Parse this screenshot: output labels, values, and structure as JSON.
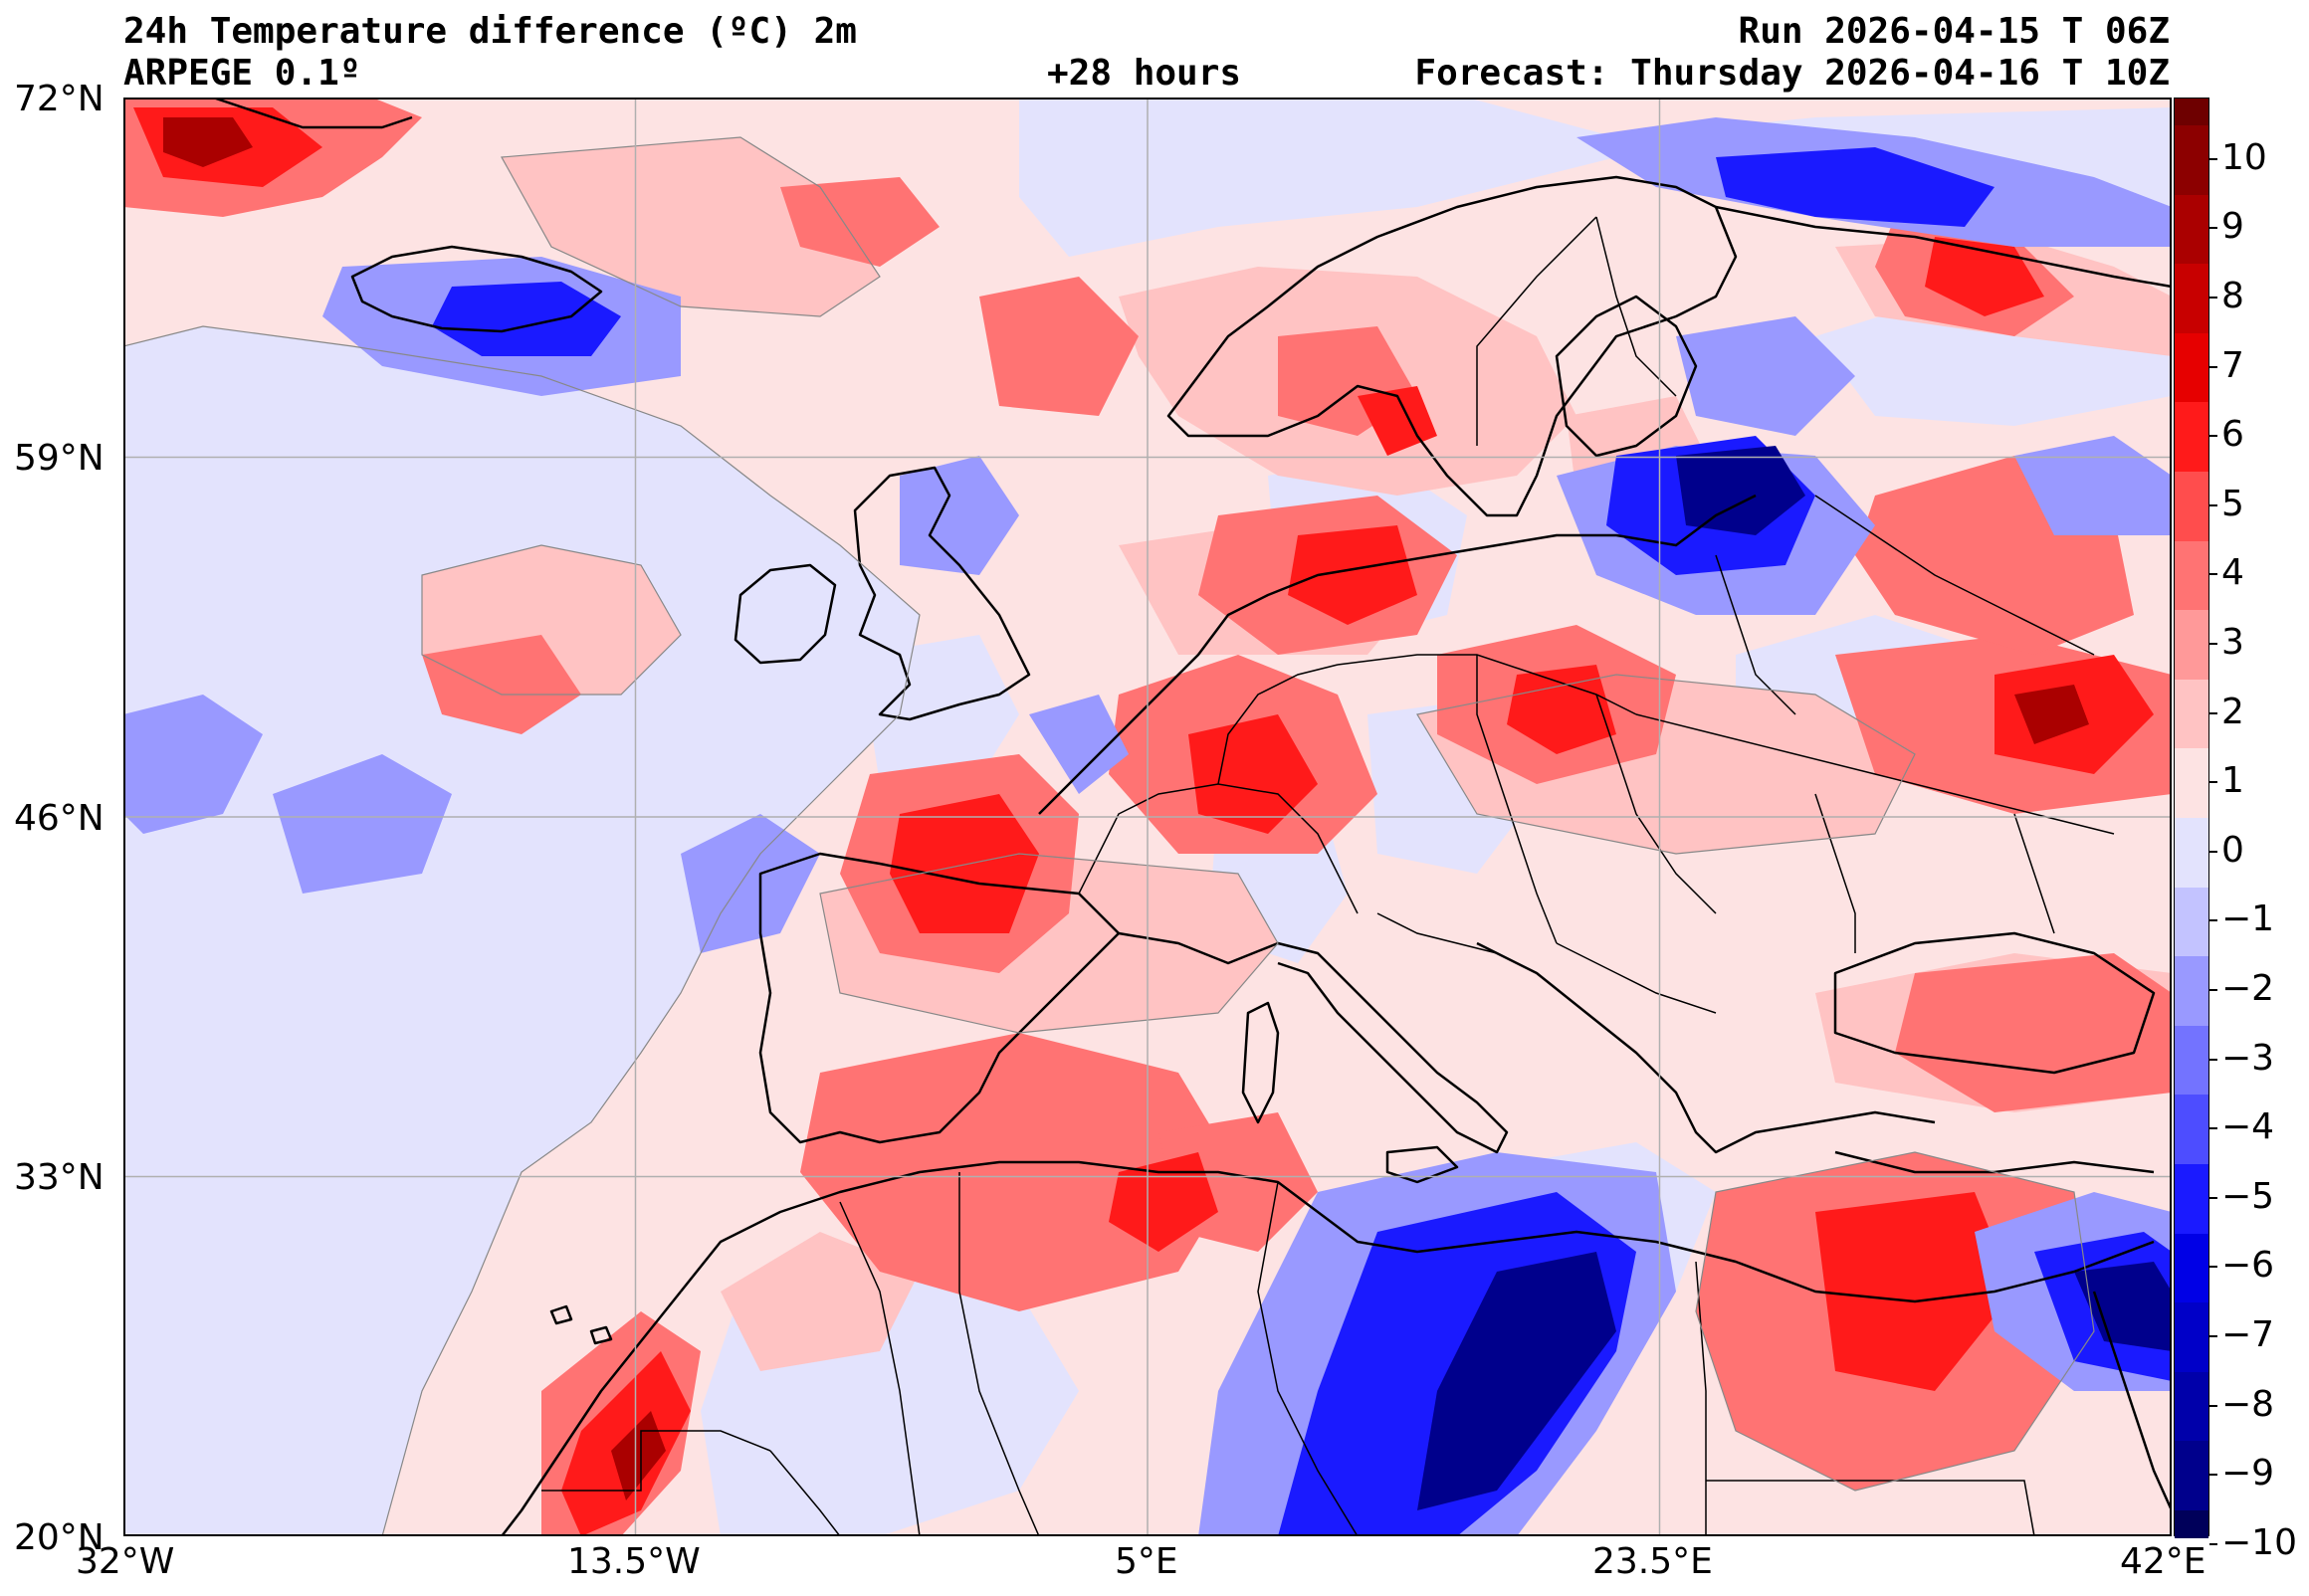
{
  "header": {
    "title_line1": "24h Temperature difference (ºC) 2m",
    "title_line2": "ARPEGE 0.1º",
    "lead_time": "+28 hours",
    "run": "Run 2026-04-15 T 06Z",
    "forecast": "Forecast: Thursday 2026-04-16 T 10Z"
  },
  "map": {
    "projection": "equirectangular",
    "lon_range": [
      -32,
      42
    ],
    "lat_range": [
      20,
      72
    ],
    "lat_ticks": [
      "72°N",
      "59°N",
      "46°N",
      "33°N",
      "20°N"
    ],
    "lon_ticks": [
      "32°W",
      "13.5°W",
      "5°E",
      "23.5°E",
      "42°E"
    ],
    "grid": true,
    "background_color": "#fde3e3"
  },
  "colorbar": {
    "tick_labels": [
      "10",
      "9",
      "8",
      "7",
      "6",
      "5",
      "4",
      "3",
      "2",
      "1",
      "0",
      "−1",
      "−2",
      "−3",
      "−4",
      "−5",
      "−6",
      "−7",
      "−8",
      "−9",
      "−10"
    ],
    "colors_top_to_bottom": [
      "#6e0000",
      "#8c0000",
      "#aa0000",
      "#c80000",
      "#e60000",
      "#ff1a1a",
      "#ff4d4d",
      "#ff7373",
      "#ff9999",
      "#ffc3c3",
      "#fde3e3",
      "#e3e3fd",
      "#c3c3ff",
      "#9999ff",
      "#7373ff",
      "#4d4dff",
      "#1a1aff",
      "#0000e6",
      "#0000c8",
      "#0000aa",
      "#00008c",
      "#00005a"
    ]
  }
}
